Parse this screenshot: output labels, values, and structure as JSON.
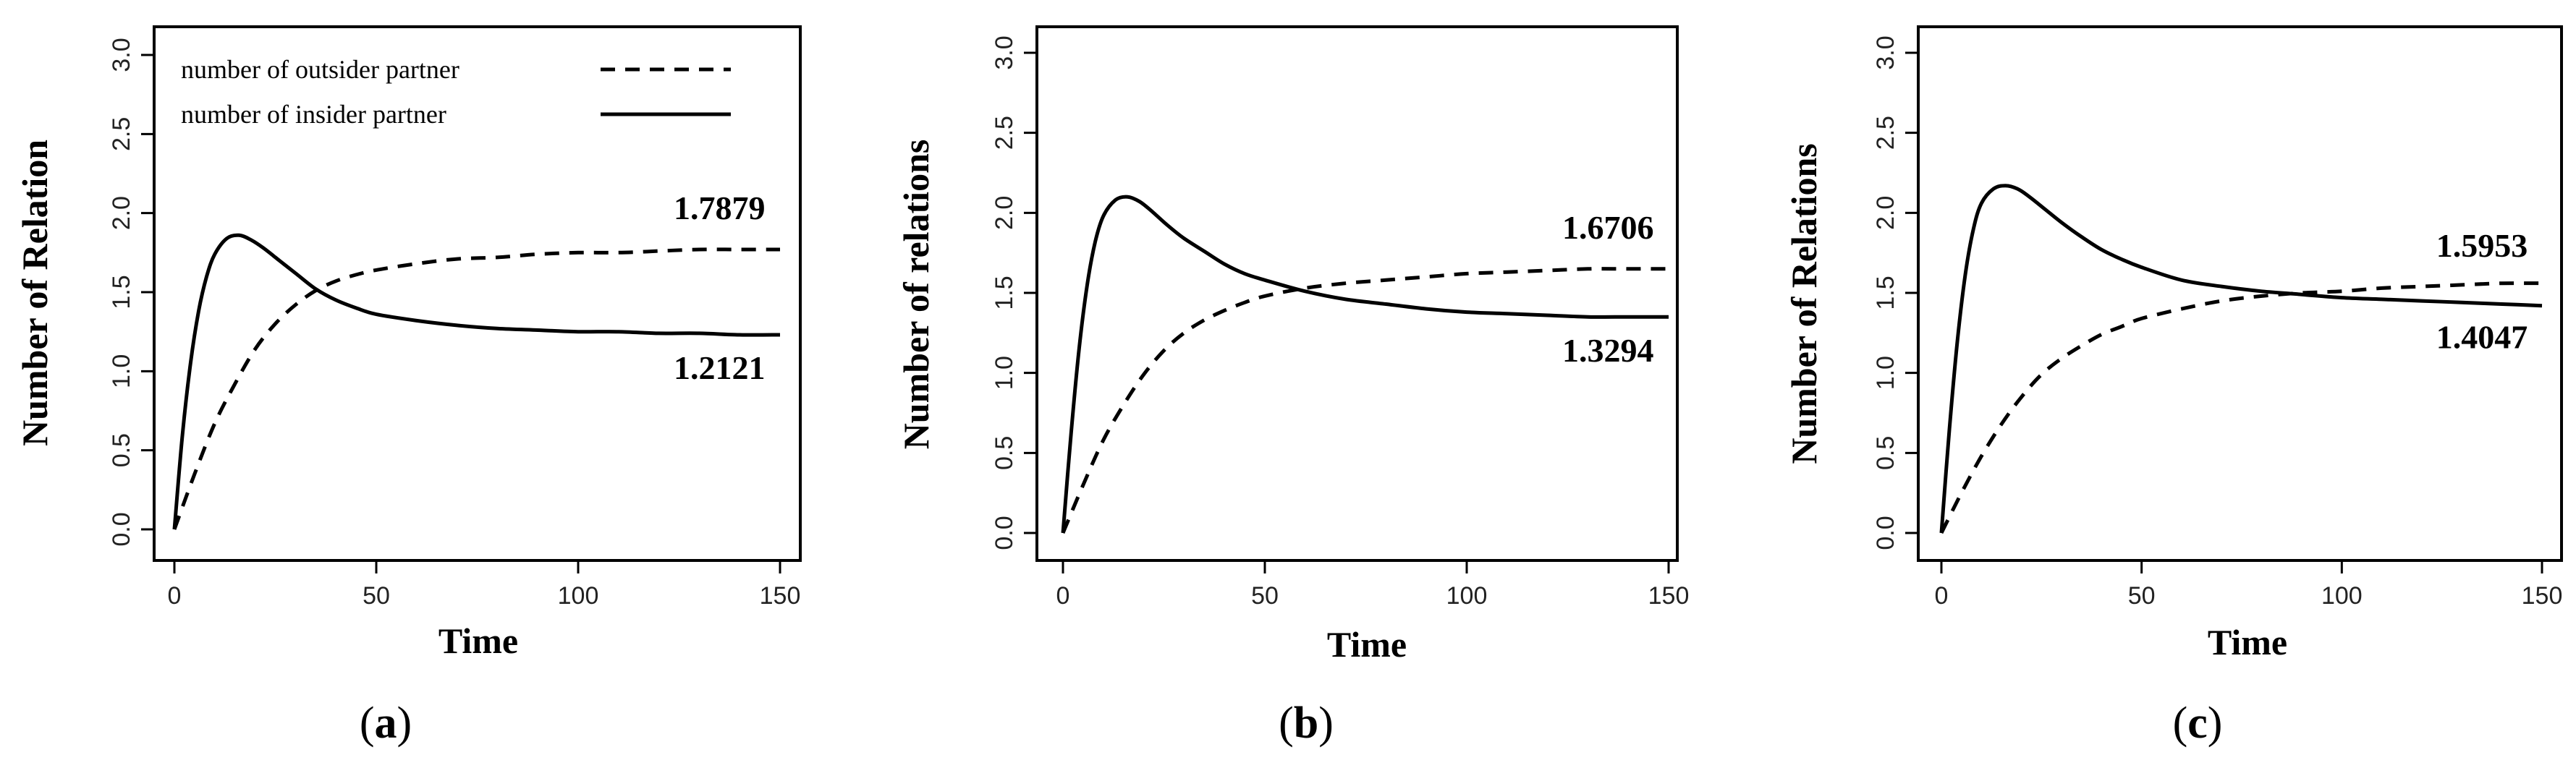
{
  "chart_data": [
    {
      "type": "line",
      "caption_letter": "a",
      "xlabel": "Time",
      "ylabel": "Number of Relation",
      "xlim": [
        0,
        150
      ],
      "ylim": [
        0,
        3
      ],
      "xticks": [
        0,
        50,
        100,
        150
      ],
      "yticks": [
        0.0,
        0.5,
        1.0,
        1.5,
        2.0,
        2.5,
        3.0
      ],
      "grid": false,
      "legend": {
        "placement": "top-left",
        "entries": [
          {
            "label": "number of outsider partner",
            "style": "dashed"
          },
          {
            "label": "number of insider partner",
            "style": "solid"
          }
        ]
      },
      "series": [
        {
          "name": "number of outsider partner",
          "style": "dashed",
          "x": [
            0,
            5,
            10,
            15,
            20,
            25,
            30,
            35,
            40,
            45,
            50,
            60,
            70,
            80,
            90,
            100,
            110,
            120,
            130,
            140,
            150
          ],
          "y": [
            0.0,
            0.35,
            0.67,
            0.92,
            1.14,
            1.3,
            1.42,
            1.51,
            1.57,
            1.61,
            1.64,
            1.68,
            1.71,
            1.72,
            1.74,
            1.75,
            1.75,
            1.76,
            1.77,
            1.77,
            1.77
          ]
        },
        {
          "name": "number of insider partner",
          "style": "solid",
          "x": [
            0,
            2,
            4,
            6,
            8,
            10,
            13,
            16,
            19,
            22,
            26,
            30,
            35,
            40,
            45,
            50,
            60,
            70,
            80,
            90,
            100,
            110,
            120,
            130,
            140,
            150
          ],
          "y": [
            0.0,
            0.6,
            1.05,
            1.38,
            1.6,
            1.74,
            1.84,
            1.86,
            1.83,
            1.78,
            1.7,
            1.62,
            1.52,
            1.45,
            1.4,
            1.36,
            1.32,
            1.29,
            1.27,
            1.26,
            1.25,
            1.25,
            1.24,
            1.24,
            1.23,
            1.23
          ]
        }
      ],
      "annotations": [
        {
          "text": "1.7879",
          "series": "number of outsider partner",
          "at_x": 135
        },
        {
          "text": "1.2121",
          "series": "number of insider partner",
          "at_x": 135
        }
      ]
    },
    {
      "type": "line",
      "caption_letter": "b",
      "xlabel": "Time",
      "ylabel": "Number of relations",
      "xlim": [
        0,
        150
      ],
      "ylim": [
        0,
        3
      ],
      "xticks": [
        0,
        50,
        100,
        150
      ],
      "yticks": [
        0.0,
        0.5,
        1.0,
        1.5,
        2.0,
        2.5,
        3.0
      ],
      "grid": false,
      "series": [
        {
          "style": "dashed",
          "x": [
            0,
            5,
            10,
            15,
            20,
            25,
            30,
            35,
            40,
            45,
            50,
            60,
            70,
            80,
            90,
            100,
            110,
            120,
            130,
            140,
            150
          ],
          "y": [
            0.0,
            0.3,
            0.58,
            0.8,
            0.99,
            1.14,
            1.25,
            1.33,
            1.39,
            1.44,
            1.48,
            1.53,
            1.56,
            1.58,
            1.6,
            1.62,
            1.63,
            1.64,
            1.65,
            1.65,
            1.65
          ]
        },
        {
          "style": "solid",
          "x": [
            0,
            2,
            4,
            6,
            8,
            10,
            13,
            16,
            19,
            22,
            26,
            30,
            35,
            40,
            45,
            50,
            60,
            70,
            80,
            90,
            100,
            110,
            120,
            130,
            140,
            150
          ],
          "y": [
            0.0,
            0.62,
            1.15,
            1.55,
            1.82,
            1.98,
            2.08,
            2.1,
            2.07,
            2.01,
            1.92,
            1.84,
            1.76,
            1.68,
            1.62,
            1.58,
            1.51,
            1.46,
            1.43,
            1.4,
            1.38,
            1.37,
            1.36,
            1.35,
            1.35,
            1.35
          ]
        }
      ],
      "annotations": [
        {
          "text": "1.6706",
          "series_index": 0,
          "at_x": 135
        },
        {
          "text": "1.3294",
          "series_index": 1,
          "at_x": 135
        }
      ]
    },
    {
      "type": "line",
      "caption_letter": "c",
      "xlabel": "Time",
      "ylabel": "Number of Relations",
      "xlim": [
        0,
        150
      ],
      "ylim": [
        0,
        3
      ],
      "xticks": [
        0,
        50,
        100,
        150
      ],
      "yticks": [
        0.0,
        0.5,
        1.0,
        1.5,
        2.0,
        2.5,
        3.0
      ],
      "grid": false,
      "series": [
        {
          "style": "dashed",
          "x": [
            0,
            5,
            10,
            15,
            20,
            25,
            30,
            35,
            40,
            45,
            50,
            60,
            70,
            80,
            90,
            100,
            110,
            120,
            130,
            140,
            150
          ],
          "y": [
            0.0,
            0.25,
            0.48,
            0.68,
            0.85,
            0.99,
            1.09,
            1.17,
            1.24,
            1.29,
            1.34,
            1.4,
            1.45,
            1.48,
            1.5,
            1.51,
            1.53,
            1.54,
            1.55,
            1.56,
            1.56
          ]
        },
        {
          "style": "solid",
          "x": [
            0,
            2,
            4,
            6,
            8,
            10,
            13,
            16,
            19,
            22,
            26,
            30,
            35,
            40,
            45,
            50,
            60,
            70,
            80,
            90,
            100,
            110,
            120,
            130,
            140,
            150
          ],
          "y": [
            0.0,
            0.65,
            1.2,
            1.62,
            1.9,
            2.06,
            2.15,
            2.17,
            2.15,
            2.1,
            2.02,
            1.94,
            1.85,
            1.77,
            1.71,
            1.66,
            1.58,
            1.54,
            1.51,
            1.49,
            1.47,
            1.46,
            1.45,
            1.44,
            1.43,
            1.42
          ]
        }
      ],
      "annotations": [
        {
          "text": "1.5953",
          "series_index": 0,
          "at_x": 135
        },
        {
          "text": "1.4047",
          "series_index": 1,
          "at_x": 135
        }
      ]
    }
  ]
}
